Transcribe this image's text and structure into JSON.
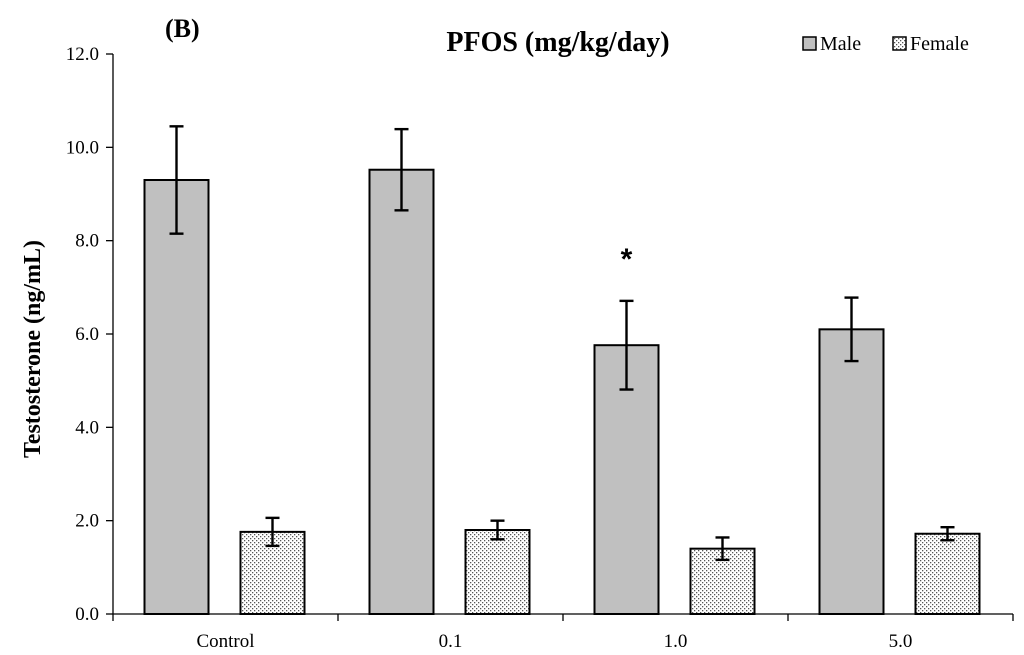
{
  "chart_data": {
    "type": "bar",
    "panel_label": "(B)",
    "title": "PFOS (mg/kg/day)",
    "xlabel": "",
    "ylabel": "Testosterone (ng/mL)",
    "ylim": [
      0,
      12
    ],
    "y_ticks": [
      "0.0",
      "2.0",
      "4.0",
      "6.0",
      "8.0",
      "10.0",
      "12.0"
    ],
    "categories": [
      "Control",
      "0.1",
      "1.0",
      "5.0"
    ],
    "series": [
      {
        "name": "Male",
        "fill": "#c0c0c0",
        "pattern": "solid",
        "values": [
          9.3,
          9.52,
          5.76,
          6.1
        ],
        "errors": [
          1.15,
          0.87,
          0.95,
          0.68
        ]
      },
      {
        "name": "Female",
        "fill": "#ffffff",
        "pattern": "dotted",
        "values": [
          1.76,
          1.8,
          1.4,
          1.72
        ],
        "errors": [
          0.3,
          0.2,
          0.24,
          0.14
        ]
      }
    ],
    "annotations": [
      {
        "text": "*",
        "category": "1.0",
        "series": "Male"
      }
    ],
    "legend_position": "top-right",
    "grid": false
  }
}
